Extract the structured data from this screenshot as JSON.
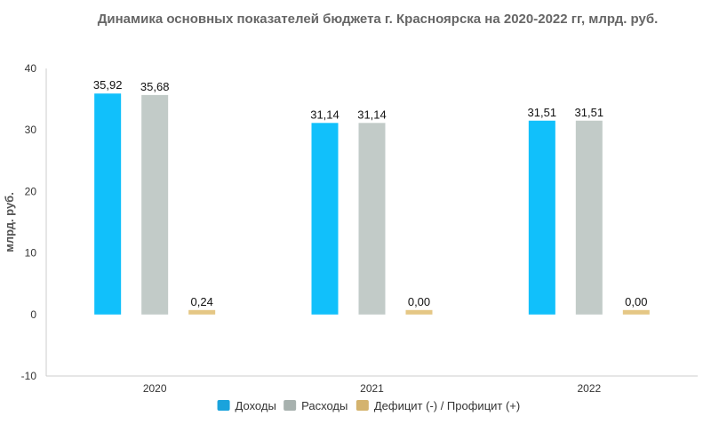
{
  "chart_data": {
    "type": "bar",
    "title": "Динамика основных показателей бюджета г. Красноярска на 2020-2022 гг, млрд. руб.",
    "ylabel": "млрд. руб.",
    "xlabel": "",
    "categories": [
      "2020",
      "2021",
      "2022"
    ],
    "ylim": [
      -10,
      40
    ],
    "yticks": [
      -10,
      0,
      10,
      20,
      30,
      40
    ],
    "grid": false,
    "legend_position": "bottom",
    "series": [
      {
        "name": "Доходы",
        "values": [
          35.92,
          31.14,
          31.51
        ],
        "labels": [
          "35,92",
          "31,14",
          "31,51"
        ],
        "color": "#11c0fb",
        "legend_color": "#1aa3dc"
      },
      {
        "name": "Расходы",
        "values": [
          35.68,
          31.14,
          31.51
        ],
        "labels": [
          "35,68",
          "31,14",
          "31,51"
        ],
        "color": "#c2cbc8",
        "legend_color": "#a7b1ae"
      },
      {
        "name": "Дефицит (-) / Профицит (+)",
        "values": [
          0.24,
          0.0,
          0.0
        ],
        "labels": [
          "0,24",
          "0,00",
          "0,00"
        ],
        "color": "#e5c785",
        "legend_color": "#d4b36e"
      }
    ]
  }
}
